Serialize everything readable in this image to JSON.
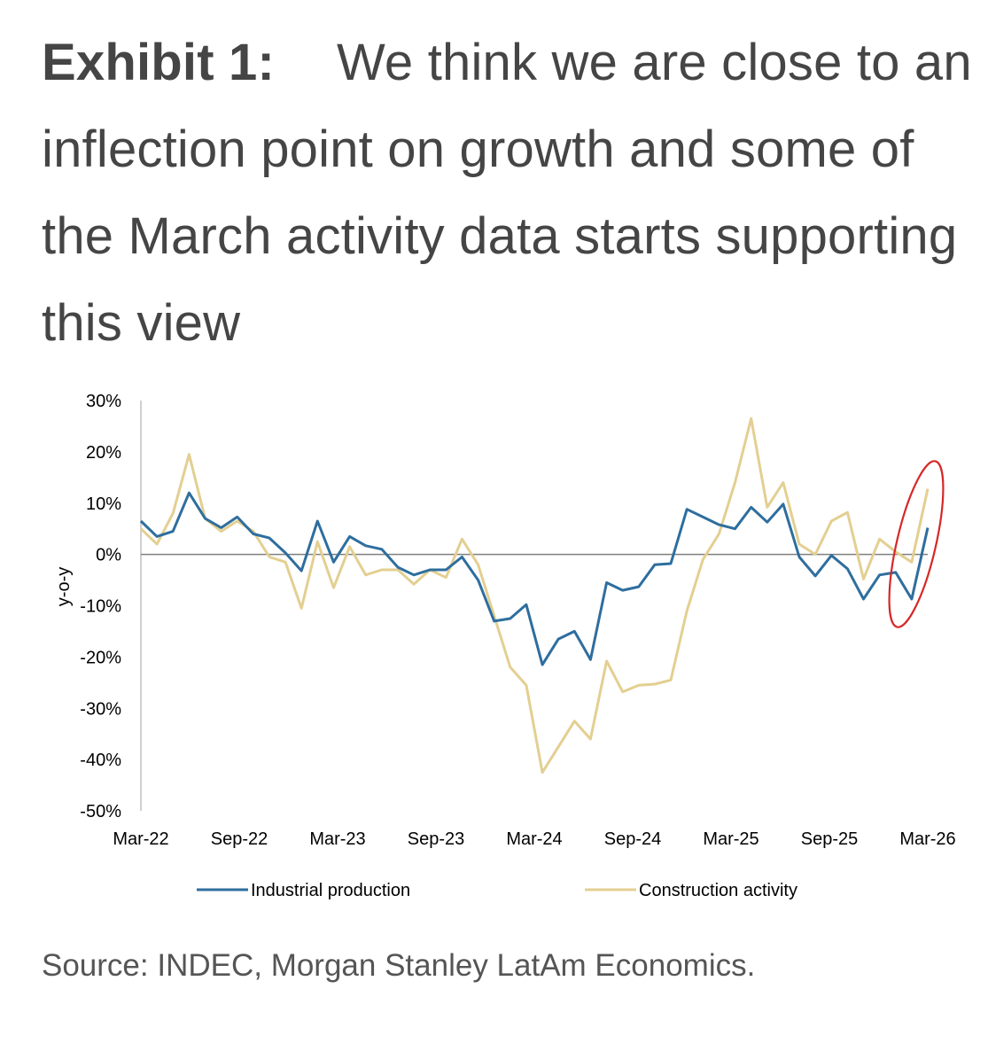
{
  "title": {
    "label": "Exhibit 1:",
    "text": "We think we are close to an inflection point on growth and some of the March activity data starts supporting this view"
  },
  "source": "Source: INDEC, Morgan Stanley LatAm Economics.",
  "chart_data": {
    "type": "line",
    "ylabel": "y-o-y",
    "ylim": [
      -50,
      30
    ],
    "yticks": [
      30,
      20,
      10,
      0,
      -10,
      -20,
      -30,
      -40,
      -50
    ],
    "ytick_labels": [
      "30%",
      "20%",
      "10%",
      "0%",
      "-10%",
      "-20%",
      "-30%",
      "-40%",
      "-50%"
    ],
    "xtick_labels": [
      "Mar-22",
      "Sep-22",
      "Mar-23",
      "Sep-23",
      "Mar-24",
      "Sep-24",
      "Mar-25",
      "Sep-25",
      "Mar-26"
    ],
    "x_start": "Mar-22",
    "x_end": "Mar-26",
    "zero_line": true,
    "grid": false,
    "legend_position": "bottom",
    "annotation": "red ellipse around the latest data points",
    "series": [
      {
        "name": "Industrial production",
        "color": "#2E6E9E",
        "values": [
          6.5,
          3.5,
          4.5,
          12.0,
          7.0,
          5.2,
          7.3,
          4.0,
          3.2,
          0.3,
          -3.2,
          6.5,
          -1.5,
          3.5,
          1.7,
          1.0,
          -2.5,
          -4.0,
          -3.0,
          -3.0,
          -0.5,
          -5.0,
          -13.0,
          -12.5,
          -9.8,
          -21.5,
          -16.5,
          -15.0,
          -20.5,
          -5.5,
          -7.0,
          -6.3,
          -2.0,
          -1.8,
          8.8,
          7.3,
          5.8,
          5.0,
          9.2,
          6.3,
          9.8,
          -0.5,
          -4.2,
          -0.2,
          -2.8,
          -8.7,
          -4.0,
          -3.5,
          -8.7,
          5.2
        ]
      },
      {
        "name": "Construction activity",
        "color": "#E3CF91",
        "values": [
          5.0,
          2.0,
          8.0,
          19.5,
          7.0,
          4.5,
          6.5,
          4.5,
          -0.5,
          -1.5,
          -10.5,
          2.5,
          -6.5,
          1.5,
          -4.0,
          -3.0,
          -3.0,
          -5.8,
          -3.0,
          -4.5,
          3.0,
          -2.0,
          -12.0,
          -22.0,
          -25.5,
          -42.5,
          -37.5,
          -32.5,
          -36.0,
          -20.8,
          -26.8,
          -25.5,
          -25.3,
          -24.5,
          -11.0,
          -1.0,
          4.0,
          14.0,
          26.5,
          9.2,
          14.0,
          2.0,
          0.0,
          6.5,
          8.2,
          -4.8,
          3.0,
          0.5,
          -1.5,
          12.8
        ]
      }
    ]
  }
}
